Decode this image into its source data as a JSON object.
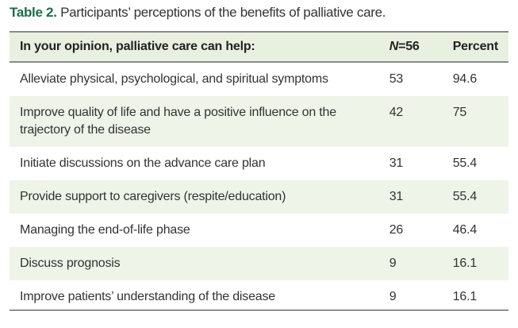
{
  "caption": {
    "label": "Table 2.",
    "text": "Participants’ perceptions of the benefits of palliative care."
  },
  "header": {
    "item": "In your opinion, palliative care can help:",
    "n_italic": "N",
    "n_rest": "=56",
    "percent": "Percent"
  },
  "rows": [
    {
      "item": "Alleviate physical, psychological, and spiritual symptoms",
      "n": "53",
      "percent": "94.6"
    },
    {
      "item": "Improve quality of life and have a positive influence on the trajectory of the disease",
      "n": "42",
      "percent": "75"
    },
    {
      "item": "Initiate discussions on the advance care plan",
      "n": "31",
      "percent": "55.4"
    },
    {
      "item": "Provide support to caregivers (respite/education)",
      "n": "31",
      "percent": "55.4"
    },
    {
      "item": "Managing the end-of-life phase",
      "n": "26",
      "percent": "46.4"
    },
    {
      "item": "Discuss prognosis",
      "n": "9",
      "percent": "16.1"
    },
    {
      "item": "Improve patients’ understanding of the disease",
      "n": "9",
      "percent": "16.1"
    }
  ],
  "colors": {
    "accent": "#1f6b4a",
    "shade": "#eef4e8"
  }
}
